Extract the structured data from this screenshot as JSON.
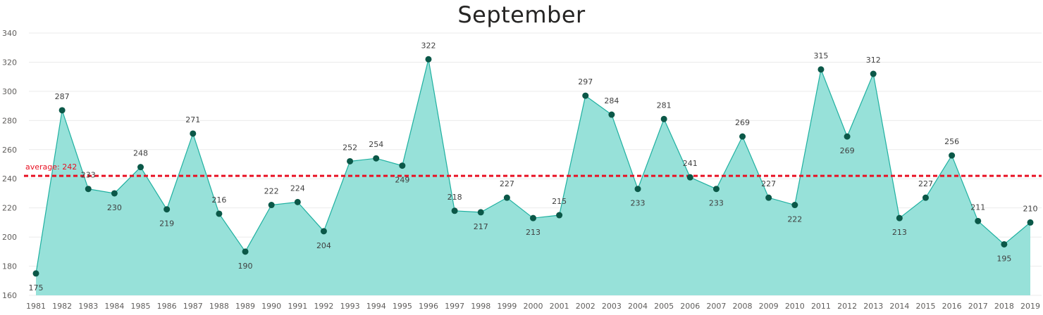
{
  "chart_data": {
    "type": "area",
    "title": "September",
    "xlabel": "",
    "ylabel": "",
    "ylim": [
      160,
      340
    ],
    "yticks": [
      160,
      180,
      200,
      220,
      240,
      260,
      280,
      300,
      320,
      340
    ],
    "grid": true,
    "x": [
      1981,
      1982,
      1983,
      1984,
      1985,
      1986,
      1987,
      1988,
      1989,
      1990,
      1991,
      1992,
      1993,
      1994,
      1995,
      1996,
      1997,
      1998,
      1999,
      2000,
      2001,
      2002,
      2003,
      2004,
      2005,
      2006,
      2007,
      2008,
      2009,
      2010,
      2011,
      2012,
      2013,
      2014,
      2015,
      2016,
      2017,
      2018,
      2019
    ],
    "values": [
      175,
      287,
      233,
      230,
      248,
      219,
      271,
      216,
      190,
      222,
      224,
      204,
      252,
      254,
      249,
      322,
      218,
      217,
      227,
      213,
      215,
      297,
      284,
      233,
      281,
      241,
      233,
      269,
      227,
      222,
      315,
      269,
      312,
      213,
      227,
      256,
      211,
      195,
      210
    ],
    "label_below": [
      true,
      false,
      false,
      true,
      false,
      true,
      false,
      false,
      true,
      false,
      false,
      true,
      false,
      false,
      true,
      false,
      false,
      true,
      false,
      true,
      false,
      false,
      false,
      true,
      false,
      false,
      true,
      false,
      false,
      true,
      false,
      true,
      false,
      true,
      false,
      false,
      false,
      true,
      false
    ],
    "reference_line": {
      "value": 242,
      "label": "average: 242",
      "color": "#e81123",
      "style": "dashed"
    },
    "colors": {
      "area_fill": "#97e1d9",
      "line": "#1fb0a0",
      "marker": "#0b5848"
    }
  }
}
